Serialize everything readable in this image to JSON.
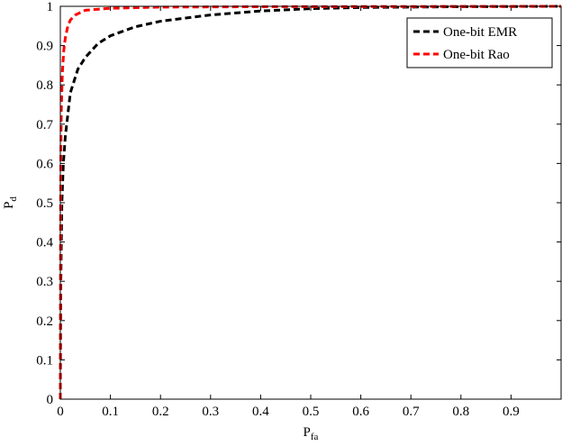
{
  "chart_data": {
    "type": "line",
    "xlabel": {
      "main": "P",
      "sub": "fa"
    },
    "ylabel": {
      "main": "P",
      "sub": "d"
    },
    "xlim": [
      0,
      1
    ],
    "ylim": [
      0,
      1
    ],
    "xticks": [
      0,
      0.1,
      0.2,
      0.3,
      0.4,
      0.5,
      0.6,
      0.7,
      0.8,
      0.9
    ],
    "yticks": [
      0,
      0.1,
      0.2,
      0.3,
      0.4,
      0.5,
      0.6,
      0.7,
      0.8,
      0.9,
      1
    ],
    "legend": "top-right",
    "series": [
      {
        "name": "One-bit EMR",
        "color": "#000000",
        "x": [
          0,
          0.001,
          0.003,
          0.006,
          0.01,
          0.02,
          0.035,
          0.05,
          0.075,
          0.1,
          0.15,
          0.2,
          0.3,
          0.4,
          0.5,
          0.6,
          0.8,
          1
        ],
        "values": [
          0,
          0.3,
          0.5,
          0.6,
          0.67,
          0.78,
          0.84,
          0.87,
          0.905,
          0.925,
          0.948,
          0.962,
          0.978,
          0.988,
          0.994,
          0.997,
          0.999,
          1
        ]
      },
      {
        "name": "One-bit Rao",
        "color": "#ff0000",
        "x": [
          0,
          0.0005,
          0.001,
          0.002,
          0.004,
          0.007,
          0.01,
          0.015,
          0.02,
          0.03,
          0.05,
          0.1,
          0.2,
          0.4,
          1
        ],
        "values": [
          0,
          0.45,
          0.62,
          0.74,
          0.83,
          0.89,
          0.92,
          0.95,
          0.965,
          0.978,
          0.99,
          0.995,
          0.998,
          0.999,
          1
        ]
      }
    ]
  }
}
